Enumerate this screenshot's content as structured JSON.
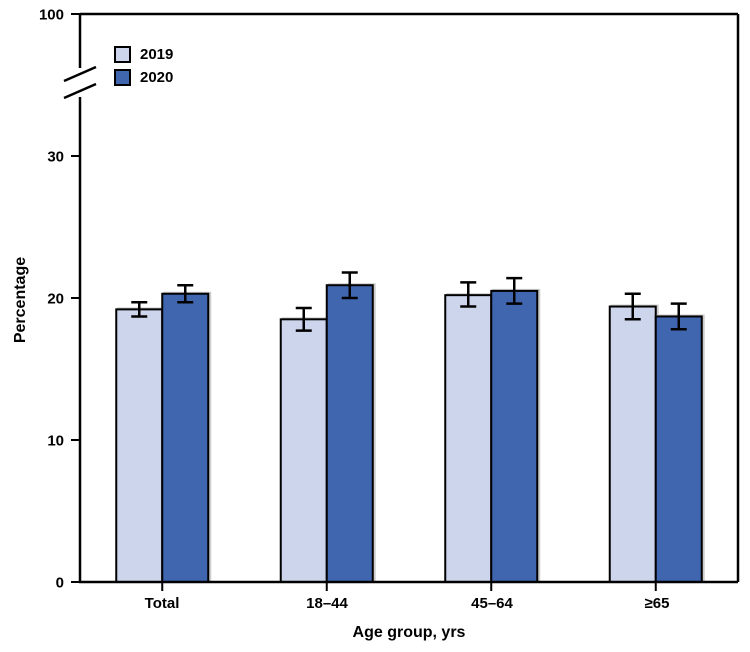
{
  "figure": {
    "background": "#ffffff",
    "axis_color": "#000000",
    "text_color": "#000000"
  },
  "chart_data": {
    "type": "bar",
    "title": "",
    "xlabel": "Age group, yrs",
    "ylabel": "Percentage",
    "categories": [
      "Total",
      "18–44",
      "45–64",
      "≥65"
    ],
    "series": [
      {
        "name": "2019",
        "color": "#ccd5ec",
        "values": [
          19.2,
          18.5,
          20.2,
          19.4
        ],
        "ci_low": [
          18.7,
          17.7,
          19.4,
          18.5
        ],
        "ci_high": [
          19.7,
          19.3,
          21.1,
          20.3
        ]
      },
      {
        "name": "2020",
        "color": "#4066b0",
        "values": [
          20.3,
          20.9,
          20.5,
          18.7
        ],
        "ci_low": [
          19.7,
          20.0,
          19.6,
          17.8
        ],
        "ci_high": [
          20.9,
          21.8,
          21.4,
          19.6
        ]
      }
    ],
    "error_bars": true,
    "grid": false,
    "legend_position": "top-left",
    "y_axis": {
      "ticks": [
        0,
        10,
        20,
        30
      ],
      "axis_break": true,
      "break_top_label": 100,
      "ylim_display": [
        0,
        33
      ]
    }
  }
}
